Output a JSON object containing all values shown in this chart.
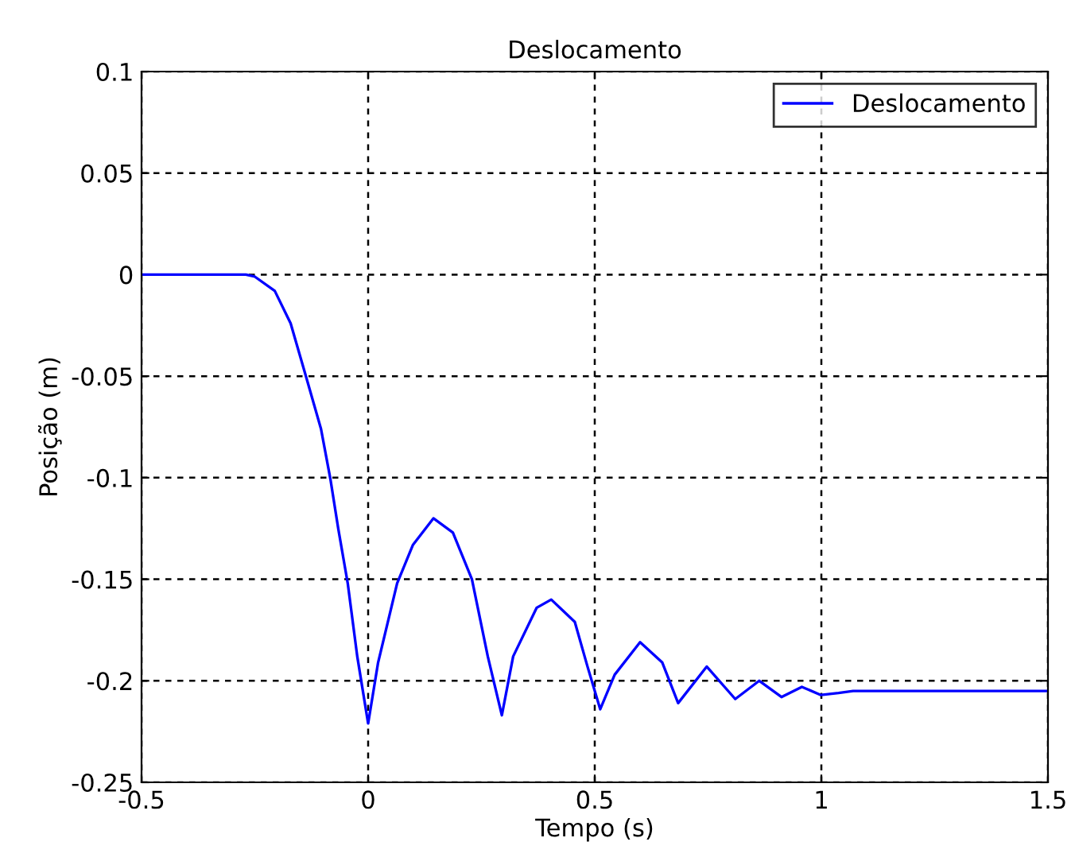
{
  "chart_data": {
    "type": "line",
    "title": "Deslocamento",
    "xlabel": "Tempo (s)",
    "ylabel": "Posição (m)",
    "series": [
      {
        "name": "Deslocamento",
        "color": "#0000ff",
        "x": [
          -0.5,
          -0.27,
          -0.25,
          -0.206,
          -0.171,
          -0.136,
          -0.104,
          -0.083,
          -0.066,
          -0.045,
          -0.024,
          0.0,
          0.022,
          0.064,
          0.099,
          0.144,
          0.187,
          0.229,
          0.264,
          0.295,
          0.32,
          0.372,
          0.404,
          0.456,
          0.484,
          0.512,
          0.544,
          0.6,
          0.649,
          0.684,
          0.747,
          0.81,
          0.863,
          0.912,
          0.957,
          0.999,
          1.038,
          1.07,
          1.5
        ],
        "values": [
          0,
          0,
          -0.001,
          -0.008,
          -0.024,
          -0.051,
          -0.076,
          -0.101,
          -0.125,
          -0.152,
          -0.188,
          -0.221,
          -0.191,
          -0.152,
          -0.133,
          -0.12,
          -0.127,
          -0.15,
          -0.188,
          -0.217,
          -0.188,
          -0.164,
          -0.16,
          -0.171,
          -0.193,
          -0.214,
          -0.197,
          -0.181,
          -0.191,
          -0.211,
          -0.193,
          -0.209,
          -0.2,
          -0.208,
          -0.203,
          -0.207,
          -0.206,
          -0.205,
          -0.205
        ]
      }
    ],
    "xlim": [
      -0.5,
      1.5
    ],
    "xticks": [
      -0.5,
      0,
      0.5,
      1,
      1.5
    ],
    "ylim": [
      -0.25,
      0.1
    ],
    "yticks": [
      -0.25,
      -0.2,
      -0.15,
      -0.1,
      -0.05,
      0,
      0.05,
      0.1
    ],
    "grid": true,
    "legend": "top right",
    "line_style": "solid",
    "marker": "none"
  }
}
